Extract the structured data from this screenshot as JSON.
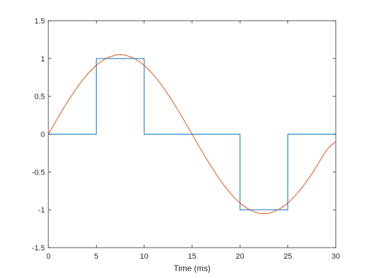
{
  "chart_data": {
    "type": "line",
    "title": "",
    "xlabel": "Time (ms)",
    "ylabel": "",
    "xlim": [
      0,
      30
    ],
    "ylim": [
      -1.5,
      1.5
    ],
    "xticks": [
      0,
      5,
      10,
      15,
      20,
      25,
      30
    ],
    "yticks": [
      -1.5,
      -1,
      -0.5,
      0,
      0.5,
      1,
      1.5
    ],
    "xtick_labels": [
      "0",
      "5",
      "10",
      "15",
      "20",
      "25",
      "30"
    ],
    "ytick_labels": [
      "-1.5",
      "-1",
      "-0.5",
      "0",
      "0.5",
      "1",
      "1.5"
    ],
    "grid": false,
    "legend": "none",
    "series": [
      {
        "style": "step",
        "color": "#0072BD",
        "x": [
          0,
          5,
          5,
          10,
          10,
          20,
          20,
          25,
          25,
          30
        ],
        "y": [
          0,
          0,
          1,
          1,
          0,
          0,
          -1,
          -1,
          0,
          0
        ]
      },
      {
        "style": "curve",
        "color": "#D95319",
        "x": [
          0,
          1,
          2,
          3,
          4,
          5,
          6,
          7,
          7.5,
          8,
          9,
          10,
          11,
          12,
          13,
          14,
          15,
          16,
          17,
          18,
          19,
          20,
          21,
          22,
          22.5,
          23,
          24,
          25,
          26,
          27,
          28,
          29,
          30
        ],
        "y": [
          0,
          0.218,
          0.427,
          0.617,
          0.78,
          0.909,
          0.998,
          1.044,
          1.05,
          1.044,
          0.998,
          0.909,
          0.78,
          0.617,
          0.427,
          0.218,
          0.0,
          -0.218,
          -0.427,
          -0.617,
          -0.78,
          -0.909,
          -0.998,
          -1.044,
          -1.05,
          -1.044,
          -0.998,
          -0.909,
          -0.78,
          -0.617,
          -0.427,
          -0.218,
          -0.097
        ]
      }
    ]
  }
}
